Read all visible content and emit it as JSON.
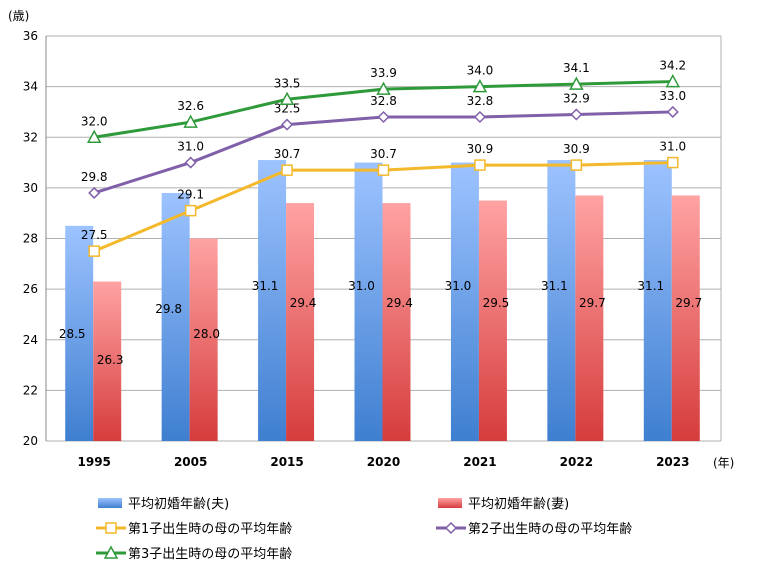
{
  "chart_data": {
    "type": "bar+line",
    "title": "",
    "ylabel": "(歳)",
    "xlabel": "(年)",
    "ylim": [
      20,
      36
    ],
    "yticks": [
      20,
      22,
      24,
      26,
      28,
      30,
      32,
      34,
      36
    ],
    "grid": true,
    "categories": [
      "1995",
      "2005",
      "2015",
      "2020",
      "2021",
      "2022",
      "2023"
    ],
    "bars": [
      {
        "name": "平均初婚年齢(夫)",
        "values": [
          28.5,
          29.8,
          31.1,
          31.0,
          31.0,
          31.1,
          31.1
        ],
        "color_top": "#9dc3ff",
        "color_bottom": "#3f7fd0"
      },
      {
        "name": "平均初婚年齢(妻)",
        "values": [
          26.3,
          28.0,
          29.4,
          29.4,
          29.5,
          29.7,
          29.7
        ],
        "color_top": "#ffa3a3",
        "color_bottom": "#d63c3c"
      }
    ],
    "lines": [
      {
        "name": "第1子出生時の母の平均年齢",
        "values": [
          27.5,
          29.1,
          30.7,
          30.7,
          30.9,
          30.9,
          31.0
        ],
        "color": "#f4b92a",
        "marker": "square"
      },
      {
        "name": "第2子出生時の母の平均年齢",
        "values": [
          29.8,
          31.0,
          32.5,
          32.8,
          32.8,
          32.9,
          33.0
        ],
        "color": "#8060a8",
        "marker": "diamond"
      },
      {
        "name": "第3子出生時の母の平均年齢",
        "values": [
          32.0,
          32.6,
          33.5,
          33.9,
          34.0,
          34.1,
          34.2
        ],
        "color": "#2f9a3a",
        "marker": "triangle"
      }
    ],
    "legend_position": "bottom"
  }
}
